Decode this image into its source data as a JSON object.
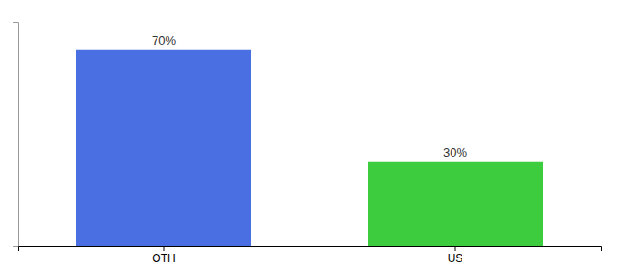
{
  "chart_data": {
    "type": "bar",
    "categories": [
      "OTH",
      "US"
    ],
    "values": [
      70,
      30
    ],
    "value_labels": [
      "70%",
      "30%"
    ],
    "colors": [
      "#4a6fe3",
      "#3dcc3d"
    ],
    "ylim": [
      0,
      80
    ],
    "data_labels": true,
    "tick_labels": "x"
  }
}
